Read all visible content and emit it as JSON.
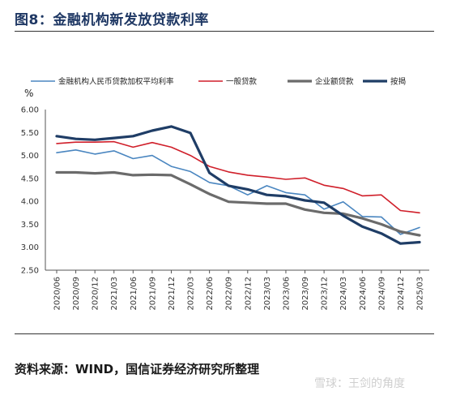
{
  "figure": {
    "title": "图8：金融机构新发放贷款利率",
    "source": "资料来源：WIND，国信证券经济研究所整理",
    "watermark": "雪球：王剑的角度"
  },
  "chart_data": {
    "type": "line",
    "title": "",
    "ylabel": "%",
    "xlabel": "",
    "ylim": [
      2.5,
      6.0
    ],
    "yticks": [
      "2.50",
      "3.00",
      "3.50",
      "4.00",
      "4.50",
      "5.00",
      "5.50",
      "6.00"
    ],
    "grid": false,
    "legend_position": "top",
    "x": [
      "2020/06",
      "2020/09",
      "2020/12",
      "2021/03",
      "2021/06",
      "2021/09",
      "2021/12",
      "2022/03",
      "2022/06",
      "2022/09",
      "2022/12",
      "2023/03",
      "2023/06",
      "2023/09",
      "2023/12",
      "2024/03",
      "2024/06",
      "2024/09",
      "2024/12",
      "2025/03"
    ],
    "series": [
      {
        "name": "金融机构人民币贷款加权平均利率",
        "color": "#4a86c0",
        "width": 1.6,
        "values": [
          5.06,
          5.12,
          5.03,
          5.1,
          4.93,
          5.0,
          4.76,
          4.65,
          4.41,
          4.34,
          4.14,
          4.34,
          4.19,
          4.14,
          3.83,
          3.99,
          3.67,
          3.66,
          3.28,
          3.43
        ]
      },
      {
        "name": "一般贷款",
        "color": "#d01f2a",
        "width": 1.6,
        "values": [
          5.26,
          5.29,
          5.29,
          5.3,
          5.18,
          5.28,
          5.18,
          5.0,
          4.76,
          4.64,
          4.57,
          4.53,
          4.48,
          4.51,
          4.35,
          4.28,
          4.12,
          4.14,
          3.8,
          3.75
        ]
      },
      {
        "name": "企业额贷款",
        "color": "#6b6b6b",
        "width": 3.2,
        "values": [
          4.63,
          4.63,
          4.61,
          4.63,
          4.57,
          4.58,
          4.57,
          4.37,
          4.16,
          3.99,
          3.97,
          3.95,
          3.95,
          3.82,
          3.75,
          3.73,
          3.63,
          3.5,
          3.34,
          3.26
        ]
      },
      {
        "name": "按揭",
        "color": "#1f3d66",
        "width": 3.2,
        "values": [
          5.42,
          5.36,
          5.34,
          5.38,
          5.42,
          5.54,
          5.63,
          5.49,
          4.62,
          4.34,
          4.26,
          4.14,
          4.11,
          4.02,
          3.97,
          3.69,
          3.45,
          3.3,
          3.08,
          3.11
        ]
      }
    ]
  }
}
